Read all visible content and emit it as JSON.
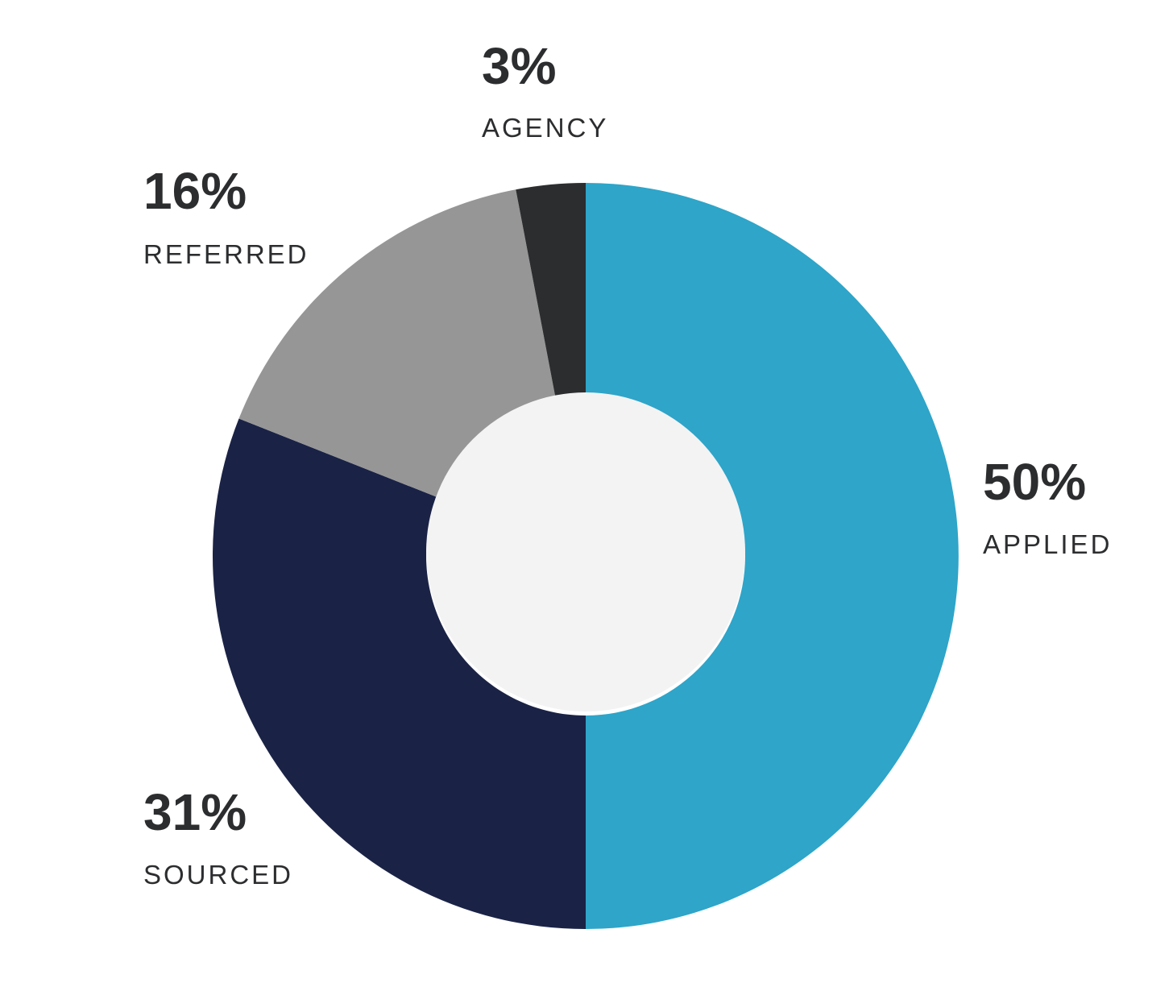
{
  "chart_data": {
    "type": "donut",
    "categories": [
      "APPLIED",
      "SOURCED",
      "REFERRED",
      "AGENCY"
    ],
    "values": [
      50,
      31,
      16,
      3
    ],
    "value_labels": [
      "50%",
      "31%",
      "16%",
      "3%"
    ],
    "colors": [
      "#2ea5c9",
      "#1a2346",
      "#969696",
      "#2c2d2f"
    ]
  }
}
